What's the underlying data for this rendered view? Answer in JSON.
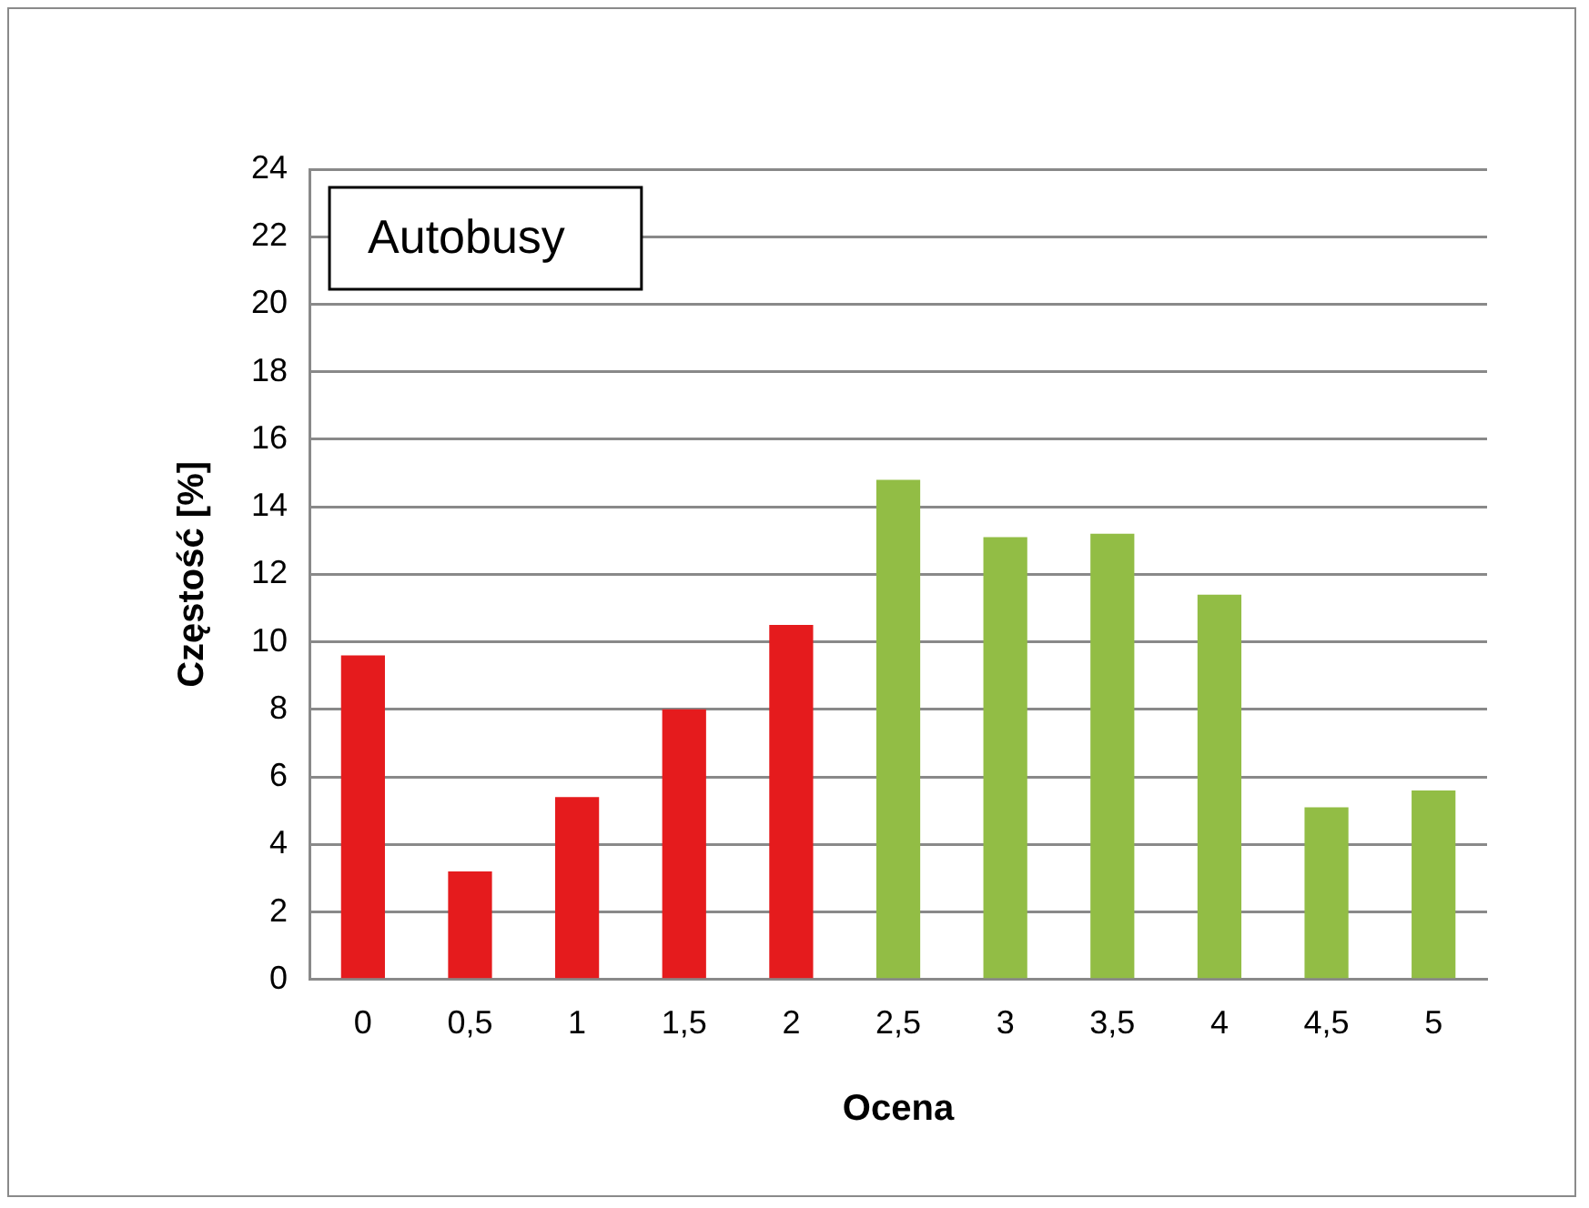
{
  "chart_data": {
    "type": "bar",
    "title": "Autobusy",
    "xlabel": "Ocena",
    "ylabel": "Częstość [%]",
    "categories": [
      "0",
      "0,5",
      "1",
      "1,5",
      "2",
      "2,5",
      "3",
      "3,5",
      "4",
      "4,5",
      "5"
    ],
    "values": [
      9.6,
      3.2,
      5.4,
      8.0,
      10.5,
      14.8,
      13.1,
      13.2,
      11.4,
      5.1,
      5.6
    ],
    "colors": [
      "#e51b1d",
      "#e51b1d",
      "#e51b1d",
      "#e51b1d",
      "#e51b1d",
      "#92bd45",
      "#92bd45",
      "#92bd45",
      "#92bd45",
      "#92bd45",
      "#92bd45"
    ],
    "ylim": [
      0,
      24
    ],
    "yticks": [
      0,
      2,
      4,
      6,
      8,
      10,
      12,
      14,
      16,
      18,
      20,
      22,
      24
    ],
    "grid": "y"
  }
}
